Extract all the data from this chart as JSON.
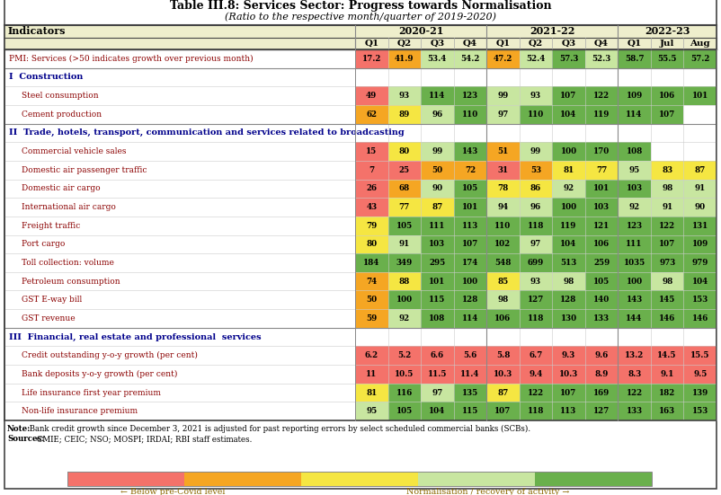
{
  "title": "Table III.8: Services Sector: Progress towards Normalisation",
  "subtitle": "(Ratio to the respective month/quarter of 2019-2020)",
  "group_headers": [
    "2020-21",
    "2021-22",
    "2022-23"
  ],
  "group_spans": [
    4,
    4,
    3
  ],
  "col_headers": [
    "Q1",
    "Q2",
    "Q3",
    "Q4",
    "Q1",
    "Q2",
    "Q3",
    "Q4",
    "Q1",
    "Jul",
    "Aug"
  ],
  "rows": [
    {
      "label": "PMI: Services (>50 indicates growth over previous month)",
      "prefix": "",
      "indent": 0,
      "bold": false,
      "section": false,
      "pmi": true,
      "values": [
        17.2,
        41.9,
        53.4,
        54.2,
        47.2,
        52.4,
        57.3,
        52.3,
        58.7,
        55.5,
        57.2
      ]
    },
    {
      "label": "Construction",
      "prefix": "I",
      "indent": 0,
      "bold": true,
      "section": true,
      "pmi": false,
      "values": [
        null,
        null,
        null,
        null,
        null,
        null,
        null,
        null,
        null,
        null,
        null
      ]
    },
    {
      "label": "Steel consumption",
      "prefix": "",
      "indent": 1,
      "bold": false,
      "section": false,
      "pmi": false,
      "values": [
        49,
        93,
        114,
        123,
        99,
        93,
        107,
        122,
        109,
        106,
        101
      ]
    },
    {
      "label": "Cement production",
      "prefix": "",
      "indent": 1,
      "bold": false,
      "section": false,
      "pmi": false,
      "values": [
        62,
        89,
        96,
        110,
        97,
        110,
        104,
        119,
        114,
        107,
        null
      ]
    },
    {
      "label": "Trade, hotels, transport, communication and services related to broadcasting",
      "prefix": "II",
      "indent": 0,
      "bold": true,
      "section": true,
      "pmi": false,
      "values": [
        null,
        null,
        null,
        null,
        null,
        null,
        null,
        null,
        null,
        null,
        null
      ]
    },
    {
      "label": "Commercial vehicle sales",
      "prefix": "",
      "indent": 1,
      "bold": false,
      "section": false,
      "pmi": false,
      "values": [
        15,
        80,
        99,
        143,
        51,
        99,
        100,
        170,
        108,
        null,
        null
      ]
    },
    {
      "label": "Domestic air passenger traffic",
      "prefix": "",
      "indent": 1,
      "bold": false,
      "section": false,
      "pmi": false,
      "values": [
        7,
        25,
        50,
        72,
        31,
        53,
        81,
        77,
        95,
        83,
        87
      ]
    },
    {
      "label": "Domestic air cargo",
      "prefix": "",
      "indent": 1,
      "bold": false,
      "section": false,
      "pmi": false,
      "values": [
        26,
        68,
        90,
        105,
        78,
        86,
        92,
        101,
        103,
        98,
        91
      ]
    },
    {
      "label": "International air cargo",
      "prefix": "",
      "indent": 1,
      "bold": false,
      "section": false,
      "pmi": false,
      "values": [
        43,
        77,
        87,
        101,
        94,
        96,
        100,
        103,
        92,
        91,
        90
      ]
    },
    {
      "label": "Freight traffic",
      "prefix": "",
      "indent": 1,
      "bold": false,
      "section": false,
      "pmi": false,
      "values": [
        79,
        105,
        111,
        113,
        110,
        118,
        119,
        121,
        123,
        122,
        131
      ]
    },
    {
      "label": "Port cargo",
      "prefix": "",
      "indent": 1,
      "bold": false,
      "section": false,
      "pmi": false,
      "values": [
        80,
        91,
        103,
        107,
        102,
        97,
        104,
        106,
        111,
        107,
        109
      ]
    },
    {
      "label": "Toll collection: volume",
      "prefix": "",
      "indent": 1,
      "bold": false,
      "section": false,
      "pmi": false,
      "values": [
        184,
        349,
        295,
        174,
        548,
        699,
        513,
        259,
        1035,
        973,
        979
      ]
    },
    {
      "label": "Petroleum consumption",
      "prefix": "",
      "indent": 1,
      "bold": false,
      "section": false,
      "pmi": false,
      "values": [
        74,
        88,
        101,
        100,
        85,
        93,
        98,
        105,
        100,
        98,
        104
      ]
    },
    {
      "label": "GST E-way bill",
      "prefix": "",
      "indent": 1,
      "bold": false,
      "section": false,
      "pmi": false,
      "values": [
        50,
        100,
        115,
        128,
        98,
        127,
        128,
        140,
        143,
        145,
        153
      ]
    },
    {
      "label": "GST revenue",
      "prefix": "",
      "indent": 1,
      "bold": false,
      "section": false,
      "pmi": false,
      "values": [
        59,
        92,
        108,
        114,
        106,
        118,
        130,
        133,
        144,
        146,
        146
      ]
    },
    {
      "label": "Financial, real estate and professional  services",
      "prefix": "III",
      "indent": 0,
      "bold": true,
      "section": true,
      "pmi": false,
      "values": [
        null,
        null,
        null,
        null,
        null,
        null,
        null,
        null,
        null,
        null,
        null
      ]
    },
    {
      "label": "Credit outstanding y-o-y growth (per cent)",
      "prefix": "",
      "indent": 1,
      "bold": false,
      "section": false,
      "pmi": false,
      "values": [
        6.2,
        5.2,
        6.6,
        5.6,
        5.8,
        6.7,
        9.3,
        9.6,
        13.2,
        14.5,
        15.5
      ]
    },
    {
      "label": "Bank deposits y-o-y growth (per cent)",
      "prefix": "",
      "indent": 1,
      "bold": false,
      "section": false,
      "pmi": false,
      "values": [
        11.0,
        10.5,
        11.5,
        11.4,
        10.3,
        9.4,
        10.3,
        8.9,
        8.3,
        9.1,
        9.5
      ]
    },
    {
      "label": "Life insurance first year premium",
      "prefix": "",
      "indent": 1,
      "bold": false,
      "section": false,
      "pmi": false,
      "values": [
        81,
        116,
        97,
        135,
        87,
        122,
        107,
        169,
        122,
        182,
        139
      ]
    },
    {
      "label": "Non-life insurance premium",
      "prefix": "",
      "indent": 1,
      "bold": false,
      "section": false,
      "pmi": false,
      "values": [
        95,
        105,
        104,
        115,
        107,
        118,
        113,
        127,
        133,
        163,
        153
      ]
    }
  ],
  "note_bold": "Note:",
  "note_text": " Bank credit growth since December 3, 2021 is adjusted for past reporting errors by select scheduled commercial banks (SCBs).",
  "sources_bold": "Sources:",
  "sources_text": " CMIE; CEIC; NSO; MOSPI; IRDAI; RBI staff estimates.",
  "legend_label_left": "← Below pre-Covid level",
  "legend_label_right": "Normalisation / recovery of activity →",
  "legend_colors": [
    "#f4726a",
    "#f5a623",
    "#f5e642",
    "#c8e6a0",
    "#6ab04c"
  ],
  "color_thresholds": [
    50,
    75,
    90,
    100
  ],
  "pmi_thresholds": [
    40,
    50,
    52,
    55
  ],
  "cell_colors": [
    "#f4726a",
    "#f5a623",
    "#f5e642",
    "#c8e6a0",
    "#6ab04c"
  ]
}
